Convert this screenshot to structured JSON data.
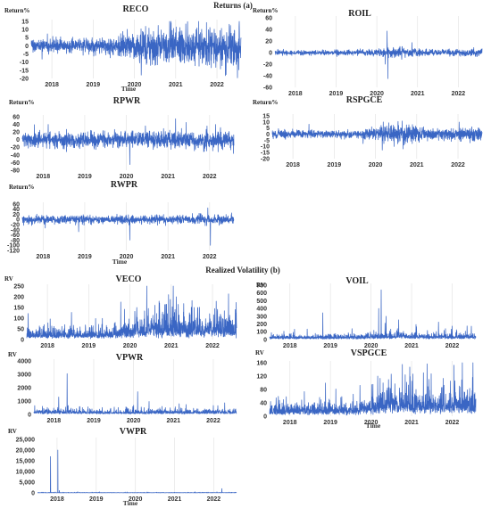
{
  "figure": {
    "returns_heading": "Returns (a)",
    "volatility_heading": "Realized Volatility (b)"
  },
  "chart_data": [
    {
      "id": "reco",
      "type": "line",
      "title": "RECO",
      "ylabel": "Return%",
      "xlabel": "Time",
      "x_range": [
        "2017-07",
        "2022-08"
      ],
      "x_ticks": [
        "2018",
        "2019",
        "2020",
        "2021",
        "2022"
      ],
      "ylim": [
        -20,
        15
      ],
      "y_ticks": [
        15,
        10,
        5,
        0,
        -5,
        -10,
        -15,
        -20
      ],
      "grid": "x-only",
      "color": "#3a66c4",
      "series": [
        {
          "approx_amplitude_by_year": {
            "2018": 2,
            "2019": 2.5,
            "2020": 6,
            "2021": 5,
            "2022": 6
          },
          "notable_points": [
            {
              "x": "2020-03",
              "y": -18
            },
            {
              "x": "2020-04",
              "y": 12
            }
          ]
        }
      ]
    },
    {
      "id": "roil",
      "type": "line",
      "title": "ROIL",
      "ylabel": "Return%",
      "xlabel": "",
      "x_range": [
        "2017-07",
        "2022-08"
      ],
      "x_ticks": [
        "2018",
        "2019",
        "2020",
        "2021",
        "2022"
      ],
      "ylim": [
        -60,
        60
      ],
      "y_ticks": [
        60,
        40,
        20,
        0,
        -20,
        -40,
        -60
      ],
      "grid": "x-only",
      "color": "#3a66c4",
      "series": [
        {
          "approx_amplitude_by_year": {
            "2018": 2,
            "2019": 2,
            "2020": 4,
            "2021": 2.5,
            "2022": 3
          },
          "notable_points": [
            {
              "x": "2020-04",
              "y": 37
            },
            {
              "x": "2020-04",
              "y": -45
            },
            {
              "x": "2020-03",
              "y": -20
            }
          ]
        }
      ]
    },
    {
      "id": "rpwr",
      "type": "line",
      "title": "RPWR",
      "ylabel": "Return%",
      "xlabel": "",
      "x_range": [
        "2017-07",
        "2022-08"
      ],
      "x_ticks": [
        "2018",
        "2019",
        "2020",
        "2021",
        "2022"
      ],
      "ylim": [
        -80,
        60
      ],
      "y_ticks": [
        60,
        40,
        20,
        0,
        -20,
        -40,
        -60,
        -80
      ],
      "grid": "x-only",
      "color": "#3a66c4",
      "series": [
        {
          "approx_amplitude_by_year": {
            "2018": 10,
            "2019": 9,
            "2020": 11,
            "2021": 12,
            "2022": 11
          },
          "notable_points": [
            {
              "x": "2020-02",
              "y": -65
            },
            {
              "x": "2021-06",
              "y": 45
            },
            {
              "x": "2018-02",
              "y": 40
            },
            {
              "x": "2022-02",
              "y": 40
            }
          ]
        }
      ]
    },
    {
      "id": "rspgce",
      "type": "line",
      "title": "RSPGCE",
      "ylabel": "Return%",
      "xlabel": "",
      "x_range": [
        "2017-07",
        "2022-08"
      ],
      "x_ticks": [
        "2018",
        "2019",
        "2020",
        "2021",
        "2022"
      ],
      "ylim": [
        -20,
        15
      ],
      "y_ticks": [
        15,
        10,
        5,
        0,
        -5,
        -10,
        -15,
        -20
      ],
      "grid": "x-only",
      "color": "#3a66c4",
      "series": [
        {
          "approx_amplitude_by_year": {
            "2018": 1.5,
            "2019": 1.5,
            "2020": 4,
            "2021": 2,
            "2022": 3
          },
          "notable_points": [
            {
              "x": "2020-03",
              "y": -13
            },
            {
              "x": "2020-03",
              "y": 10
            }
          ]
        }
      ]
    },
    {
      "id": "rwpr",
      "type": "line",
      "title": "RWPR",
      "ylabel": "Return%",
      "xlabel": "Time",
      "x_range": [
        "2017-07",
        "2022-08"
      ],
      "x_ticks": [
        "2018",
        "2019",
        "2020",
        "2021",
        "2022"
      ],
      "ylim": [
        -120,
        60
      ],
      "y_ticks": [
        60,
        40,
        20,
        0,
        -20,
        -40,
        -60,
        -80,
        -100,
        -120
      ],
      "grid": "x-only",
      "color": "#3a66c4",
      "series": [
        {
          "approx_amplitude_by_year": {
            "2018": 8,
            "2019": 7,
            "2020": 8,
            "2021": 8,
            "2022": 9
          },
          "notable_points": [
            {
              "x": "2020-02",
              "y": -80
            },
            {
              "x": "2022-01",
              "y": -100
            },
            {
              "x": "2021-12",
              "y": 45
            }
          ]
        }
      ]
    },
    {
      "id": "veco",
      "type": "line",
      "title": "VECO",
      "ylabel": "RV",
      "xlabel": "",
      "x_range": [
        "2017-07",
        "2022-08"
      ],
      "x_ticks": [
        "2018",
        "2019",
        "2020",
        "2021",
        "2022"
      ],
      "ylim": [
        0,
        250
      ],
      "y_ticks": [
        250,
        200,
        150,
        100,
        50,
        0
      ],
      "grid": "x-only",
      "color": "#3a66c4",
      "series": [
        {
          "approx_level_by_year": {
            "2018": 20,
            "2019": 22,
            "2020": 45,
            "2021": 45,
            "2022": 50
          },
          "notable_points": [
            {
              "x": "2020-03",
              "y": 150
            },
            {
              "x": "2020-12",
              "y": 210
            },
            {
              "x": "2021-02",
              "y": 200
            },
            {
              "x": "2021-08",
              "y": 150
            }
          ]
        }
      ]
    },
    {
      "id": "voil",
      "type": "line",
      "title": "VOIL",
      "ylabel": "RV",
      "xlabel": "",
      "x_range": [
        "2017-07",
        "2022-08"
      ],
      "x_ticks": [
        "2018",
        "2019",
        "2020",
        "2021",
        "2022"
      ],
      "ylim": [
        0,
        700
      ],
      "y_ticks": [
        700,
        600,
        500,
        400,
        300,
        200,
        100,
        0
      ],
      "grid": "x-only",
      "color": "#3a66c4",
      "series": [
        {
          "approx_level_by_year": {
            "2018": 25,
            "2019": 25,
            "2020": 40,
            "2021": 30,
            "2022": 35
          },
          "notable_points": [
            {
              "x": "2020-04",
              "y": 640
            },
            {
              "x": "2020-03",
              "y": 400
            },
            {
              "x": "2020-05",
              "y": 300
            }
          ]
        }
      ]
    },
    {
      "id": "vpwr",
      "type": "line",
      "title": "VPWR",
      "ylabel": "RV",
      "xlabel": "",
      "x_range": [
        "2017-07",
        "2022-08"
      ],
      "x_ticks": [
        "2018",
        "2019",
        "2020",
        "2021",
        "2022"
      ],
      "ylim": [
        0,
        4000
      ],
      "y_ticks": [
        4000,
        3000,
        2000,
        1000,
        0
      ],
      "grid": "x-only",
      "color": "#3a66c4",
      "series": [
        {
          "approx_level_by_year": {
            "2018": 150,
            "2019": 120,
            "2020": 150,
            "2021": 150,
            "2022": 150
          },
          "notable_points": [
            {
              "x": "2018-05",
              "y": 3050
            },
            {
              "x": "2020-02",
              "y": 1700
            },
            {
              "x": "2018-02",
              "y": 1300
            },
            {
              "x": "2021-02",
              "y": 800
            }
          ]
        }
      ]
    },
    {
      "id": "vspgce",
      "type": "line",
      "title": "VSPGCE",
      "ylabel": "RV",
      "xlabel": "Time",
      "x_range": [
        "2017-07",
        "2022-08"
      ],
      "x_ticks": [
        "2018",
        "2019",
        "2020",
        "2021",
        "2022"
      ],
      "ylim": [
        0,
        160
      ],
      "y_ticks": [
        160,
        120,
        80,
        40,
        0
      ],
      "grid": "x-only",
      "color": "#3a66c4",
      "series": [
        {
          "approx_level_by_year": {
            "2018": 15,
            "2019": 15,
            "2020": 35,
            "2021": 30,
            "2022": 30
          },
          "notable_points": [
            {
              "x": "2020-03",
              "y": 120
            },
            {
              "x": "2020-10",
              "y": 155
            },
            {
              "x": "2021-04",
              "y": 130
            }
          ]
        }
      ]
    },
    {
      "id": "vwpr",
      "type": "line",
      "title": "VWPR",
      "ylabel": "RV",
      "xlabel": "Time",
      "x_range": [
        "2017-07",
        "2022-08"
      ],
      "x_ticks": [
        "2018",
        "2019",
        "2020",
        "2021",
        "2022"
      ],
      "ylim": [
        0,
        25000
      ],
      "y_ticks": [
        "25,000",
        "20,000",
        "15,000",
        "10,000",
        "5,000",
        "0"
      ],
      "grid": "x-only",
      "color": "#3a66c4",
      "series": [
        {
          "approx_level_by_year": {
            "2018": 80,
            "2019": 80,
            "2020": 80,
            "2021": 80,
            "2022": 100
          },
          "notable_points": [
            {
              "x": "2017-11",
              "y": 17000
            },
            {
              "x": "2018-01",
              "y": 20000
            },
            {
              "x": "2022-03",
              "y": 2000
            }
          ]
        }
      ]
    }
  ]
}
